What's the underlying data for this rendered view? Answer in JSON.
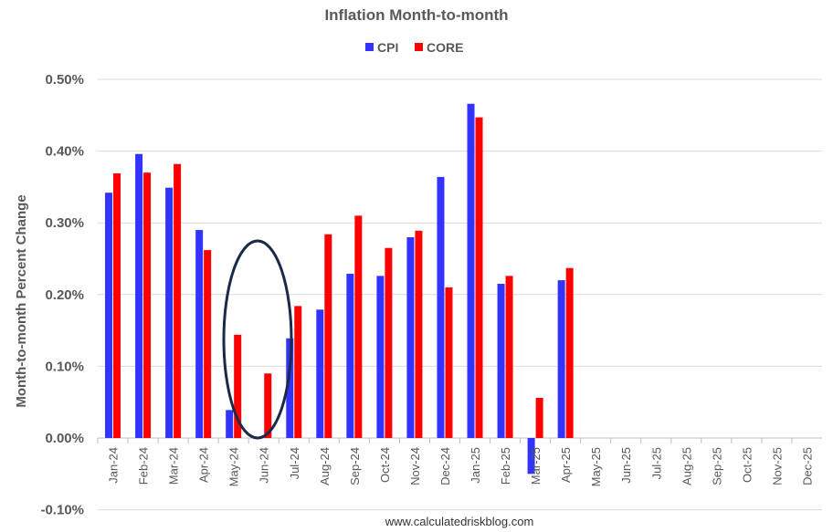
{
  "chart_data": {
    "type": "bar",
    "title": "Inflation Month-to-month",
    "ylabel": "Month-to-month Percent Change",
    "footer": "www.calculatedriskblog.com",
    "ylim": [
      -0.1,
      0.5
    ],
    "yticks": [
      "-0.10%",
      "0.00%",
      "0.10%",
      "0.20%",
      "0.30%",
      "0.40%",
      "0.50%"
    ],
    "grid": true,
    "legend": "top",
    "categories": [
      "Jan-24",
      "Feb-24",
      "Mar-24",
      "Apr-24",
      "May-24",
      "Jun-24",
      "Jul-24",
      "Aug-24",
      "Sep-24",
      "Oct-24",
      "Nov-24",
      "Dec-24",
      "Jan-25",
      "Feb-25",
      "Mar-25",
      "Apr-25",
      "May-25",
      "Jun-25",
      "Jul-25",
      "Aug-25",
      "Sep-25",
      "Oct-25",
      "Nov-25",
      "Dec-25"
    ],
    "series": [
      {
        "name": "CPI",
        "color": "#3333ff",
        "values": [
          0.342,
          0.396,
          0.349,
          0.29,
          0.039,
          0.0,
          0.139,
          0.179,
          0.229,
          0.226,
          0.28,
          0.364,
          0.466,
          0.215,
          -0.05,
          0.22,
          null,
          null,
          null,
          null,
          null,
          null,
          null,
          null
        ]
      },
      {
        "name": "CORE",
        "color": "#ff0000",
        "values": [
          0.369,
          0.37,
          0.382,
          0.262,
          0.144,
          0.09,
          0.184,
          0.284,
          0.31,
          0.265,
          0.289,
          0.21,
          0.447,
          0.226,
          0.056,
          0.237,
          null,
          null,
          null,
          null,
          null,
          null,
          null,
          null
        ]
      }
    ],
    "annotation": {
      "type": "ellipse",
      "category": "Jun-24",
      "color": "#1a2a4a"
    }
  }
}
